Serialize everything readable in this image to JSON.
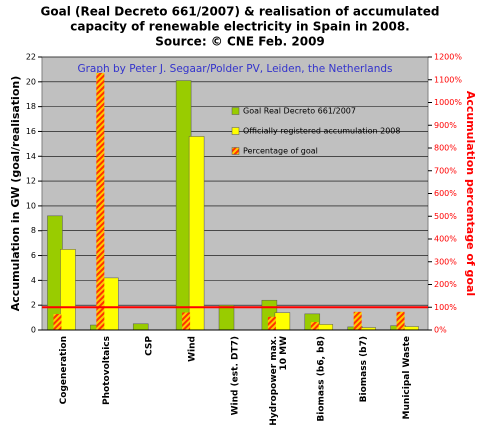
{
  "chart_data": {
    "type": "bar",
    "title": [
      "Goal (Real Decreto 661/2007) & realisation of accumulated",
      "capacity of renewable electricity in Spain in 2008.",
      "Source: © CNE Feb. 2009"
    ],
    "subtitle": "Graph by Peter J. Segaar/Polder PV, Leiden, the Netherlands",
    "ylabel": "Accumulation in GW (goal/realisation)",
    "y2label": "Accumulation percentage of goal",
    "categories": [
      "Cogeneration",
      "Photovoltaics",
      "CSP",
      "Wind",
      "Wind (est. DT7)",
      "Hydropower max. 10 MW",
      "Biomass (b6, b8)",
      "Biomass (b7)",
      "Municipal Waste"
    ],
    "series": [
      {
        "name": "Goal Real Decreto 661/2007",
        "color": "#99cc00",
        "values": [
          9.2,
          0.4,
          0.5,
          20.1,
          2.0,
          2.4,
          1.3,
          0.25,
          0.35
        ]
      },
      {
        "name": "Officially registered accumulation 2008",
        "color": "#ffff00",
        "values": [
          6.5,
          4.2,
          0.01,
          15.6,
          0,
          1.4,
          0.45,
          0.2,
          0.28
        ]
      },
      {
        "name": "Percentage of goal",
        "color": "#ff3300",
        "axis": "y2",
        "values": [
          70,
          1130,
          2,
          77,
          0,
          58,
          35,
          80,
          80
        ]
      }
    ],
    "ylim": [
      0,
      22
    ],
    "yticks": [
      0,
      2,
      4,
      6,
      8,
      10,
      12,
      14,
      16,
      18,
      20,
      22
    ],
    "y2lim": [
      0,
      1200
    ],
    "y2ticks": [
      {
        "value": 0,
        "label": "0%"
      },
      {
        "value": 100,
        "label": "100%"
      },
      {
        "value": 200,
        "label": "200%"
      },
      {
        "value": 300,
        "label": "300%"
      },
      {
        "value": 400,
        "label": "400%"
      },
      {
        "value": 500,
        "label": "500%"
      },
      {
        "value": 600,
        "label": "600%"
      },
      {
        "value": 700,
        "label": "700%"
      },
      {
        "value": 800,
        "label": "800%"
      },
      {
        "value": 900,
        "label": "900%"
      },
      {
        "value": 1000,
        "label": "1000%"
      },
      {
        "value": 1100,
        "label": "1100%"
      },
      {
        "value": 1200,
        "label": "1200%"
      }
    ],
    "reference_line": {
      "axis": "y2",
      "value": 100,
      "color": "#ff0000"
    },
    "grid": true,
    "legend": "upper right"
  }
}
